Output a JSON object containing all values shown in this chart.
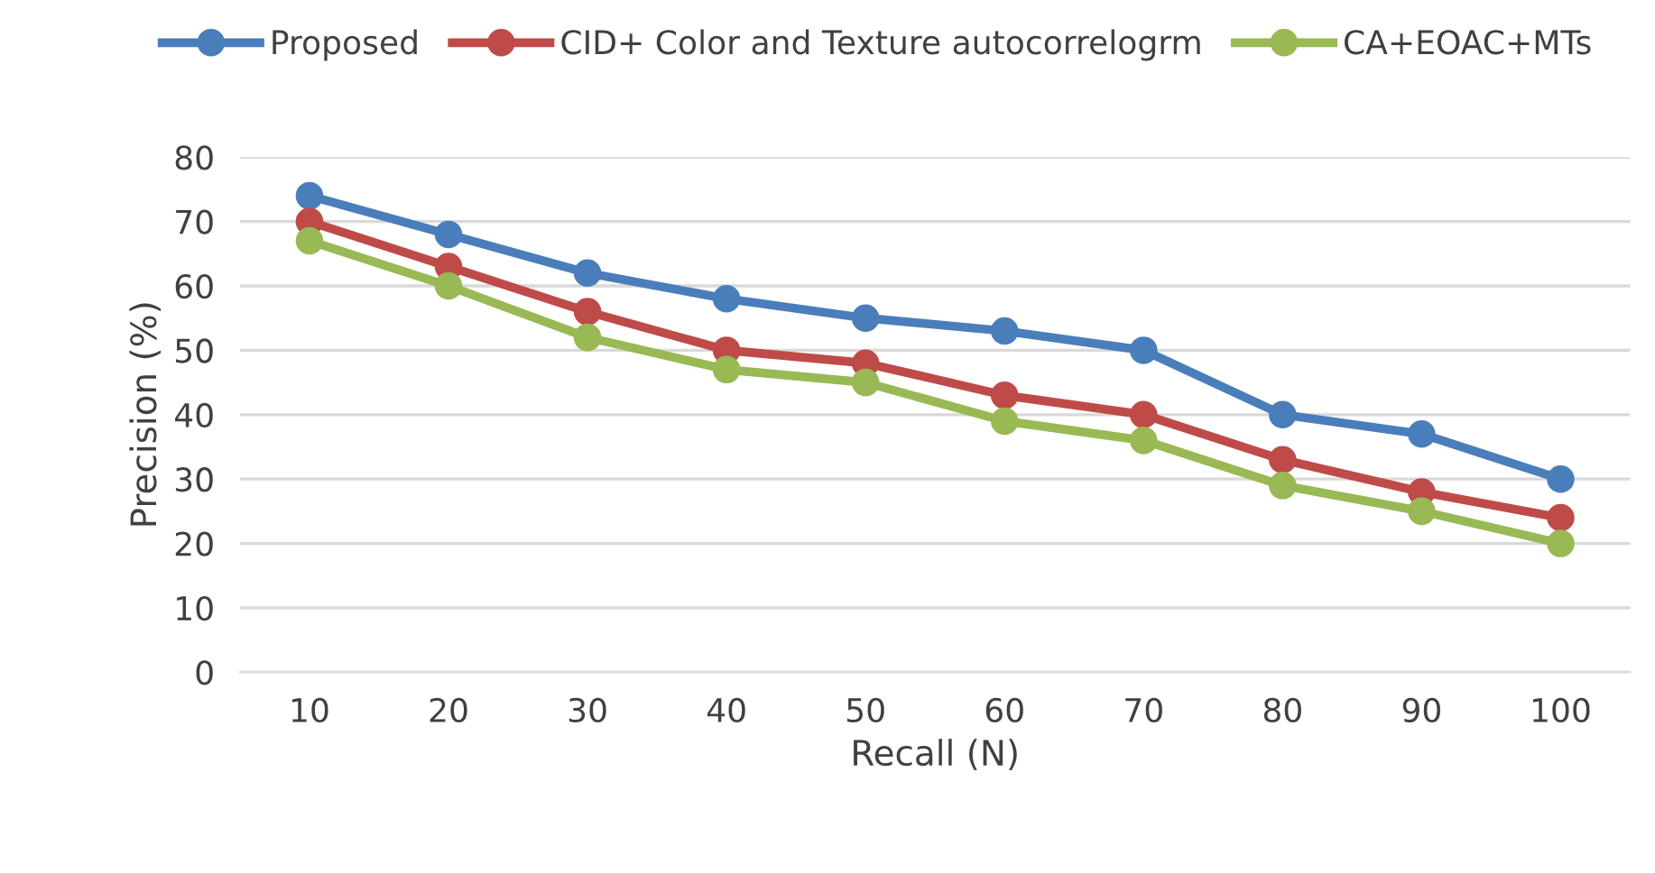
{
  "chart_data": {
    "type": "line",
    "xlabel": "Recall (N)",
    "ylabel": "Precision (%)",
    "categories": [
      "10",
      "20",
      "30",
      "40",
      "50",
      "60",
      "70",
      "80",
      "90",
      "100"
    ],
    "series": [
      {
        "name": "Proposed",
        "color": "#4a7ebb",
        "values": [
          74,
          68,
          62,
          58,
          55,
          53,
          50,
          40,
          37,
          30
        ]
      },
      {
        "name": "CID+ Color and Texture autocorrelogrm",
        "color": "#be4b48",
        "values": [
          70,
          63,
          56,
          50,
          48,
          43,
          40,
          33,
          28,
          24
        ]
      },
      {
        "name": "CA+EOAC+MTs",
        "color": "#98b954",
        "values": [
          67,
          60,
          52,
          47,
          45,
          39,
          36,
          29,
          25,
          20
        ]
      }
    ],
    "ylim": [
      0,
      80
    ],
    "yticks": [
      0,
      10,
      20,
      30,
      40,
      50,
      60,
      70,
      80
    ],
    "grid": "y",
    "legend": "top",
    "marker": "circle",
    "line_style": "solid"
  }
}
